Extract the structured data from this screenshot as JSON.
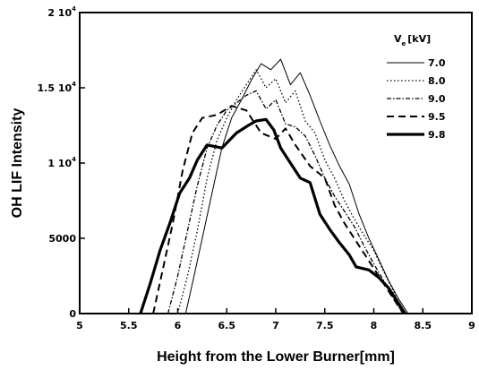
{
  "chart_data": {
    "type": "line",
    "xlabel": "Height from the Lower Burner[mm]",
    "ylabel": "OH LIF Intensity",
    "xlim": [
      5,
      9
    ],
    "ylim": [
      0,
      20000
    ],
    "x_ticks": [
      {
        "value": 5,
        "label": "5"
      },
      {
        "value": 5.5,
        "label": "5.5"
      },
      {
        "value": 6,
        "label": "6"
      },
      {
        "value": 6.5,
        "label": "6.5"
      },
      {
        "value": 7,
        "label": "7"
      },
      {
        "value": 7.5,
        "label": "7.5"
      },
      {
        "value": 8,
        "label": "8"
      },
      {
        "value": 8.5,
        "label": "8.5"
      },
      {
        "value": 9,
        "label": "9"
      }
    ],
    "y_ticks": [
      {
        "value": 0,
        "base": "0",
        "exp": ""
      },
      {
        "value": 5000,
        "base": "5000",
        "exp": ""
      },
      {
        "value": 10000,
        "base": "1 10",
        "exp": "4"
      },
      {
        "value": 15000,
        "base": "1.5 10",
        "exp": "4"
      },
      {
        "value": 20000,
        "base": "2 10",
        "exp": "4"
      }
    ],
    "legend": {
      "title_main": "V",
      "title_sub": "e",
      "title_unit": "[kV]",
      "placement": "top-right"
    },
    "grid": false,
    "series": [
      {
        "name": "7.0",
        "style": "thin-solid",
        "points": [
          [
            6.08,
            0
          ],
          [
            6.15,
            2000
          ],
          [
            6.25,
            5000
          ],
          [
            6.35,
            8000
          ],
          [
            6.45,
            11000
          ],
          [
            6.55,
            13000
          ],
          [
            6.65,
            14200
          ],
          [
            6.75,
            15500
          ],
          [
            6.85,
            16600
          ],
          [
            6.95,
            16200
          ],
          [
            7.05,
            16900
          ],
          [
            7.15,
            15200
          ],
          [
            7.25,
            16000
          ],
          [
            7.35,
            14500
          ],
          [
            7.45,
            12800
          ],
          [
            7.55,
            11200
          ],
          [
            7.65,
            9800
          ],
          [
            7.75,
            8600
          ],
          [
            7.85,
            6600
          ],
          [
            7.95,
            5000
          ],
          [
            8.05,
            3600
          ],
          [
            8.15,
            2200
          ],
          [
            8.25,
            1000
          ],
          [
            8.35,
            0
          ]
        ]
      },
      {
        "name": "8.0",
        "style": "dotted",
        "points": [
          [
            6.0,
            0
          ],
          [
            6.1,
            2500
          ],
          [
            6.2,
            5500
          ],
          [
            6.3,
            9000
          ],
          [
            6.4,
            11500
          ],
          [
            6.5,
            13000
          ],
          [
            6.6,
            14200
          ],
          [
            6.7,
            15200
          ],
          [
            6.8,
            16200
          ],
          [
            6.9,
            15000
          ],
          [
            7.0,
            15600
          ],
          [
            7.1,
            14000
          ],
          [
            7.2,
            14800
          ],
          [
            7.3,
            12800
          ],
          [
            7.4,
            12000
          ],
          [
            7.5,
            10200
          ],
          [
            7.6,
            9000
          ],
          [
            7.7,
            7500
          ],
          [
            7.8,
            6300
          ],
          [
            7.9,
            5200
          ],
          [
            8.0,
            4200
          ],
          [
            8.1,
            2800
          ],
          [
            8.2,
            1500
          ],
          [
            8.3,
            0
          ]
        ]
      },
      {
        "name": "9.0",
        "style": "dash-dot",
        "points": [
          [
            5.9,
            0
          ],
          [
            6.0,
            2500
          ],
          [
            6.1,
            5500
          ],
          [
            6.2,
            8500
          ],
          [
            6.3,
            11000
          ],
          [
            6.4,
            12500
          ],
          [
            6.5,
            13500
          ],
          [
            6.6,
            14000
          ],
          [
            6.7,
            14500
          ],
          [
            6.8,
            14800
          ],
          [
            6.9,
            13600
          ],
          [
            7.0,
            14200
          ],
          [
            7.1,
            12600
          ],
          [
            7.2,
            12400
          ],
          [
            7.3,
            11800
          ],
          [
            7.4,
            10500
          ],
          [
            7.5,
            9000
          ],
          [
            7.6,
            7800
          ],
          [
            7.7,
            6800
          ],
          [
            7.8,
            5800
          ],
          [
            7.9,
            4500
          ],
          [
            8.0,
            3300
          ],
          [
            8.1,
            2200
          ],
          [
            8.2,
            1000
          ],
          [
            8.3,
            0
          ]
        ]
      },
      {
        "name": "9.5",
        "style": "dashed",
        "points": [
          [
            5.75,
            0
          ],
          [
            5.85,
            3000
          ],
          [
            5.95,
            6000
          ],
          [
            6.05,
            9500
          ],
          [
            6.15,
            12000
          ],
          [
            6.25,
            13000
          ],
          [
            6.4,
            13200
          ],
          [
            6.55,
            13800
          ],
          [
            6.7,
            13500
          ],
          [
            6.85,
            12000
          ],
          [
            7.0,
            11600
          ],
          [
            7.1,
            12300
          ],
          [
            7.2,
            11200
          ],
          [
            7.35,
            9800
          ],
          [
            7.5,
            9000
          ],
          [
            7.6,
            7200
          ],
          [
            7.7,
            6000
          ],
          [
            7.8,
            5000
          ],
          [
            7.9,
            4000
          ],
          [
            8.0,
            3000
          ],
          [
            8.1,
            2000
          ],
          [
            8.2,
            1000
          ],
          [
            8.3,
            0
          ]
        ]
      },
      {
        "name": "9.8",
        "style": "thick-solid",
        "points": [
          [
            5.62,
            0
          ],
          [
            5.72,
            2000
          ],
          [
            5.82,
            4200
          ],
          [
            5.92,
            6000
          ],
          [
            6.02,
            8000
          ],
          [
            6.12,
            9000
          ],
          [
            6.2,
            10200
          ],
          [
            6.3,
            11200
          ],
          [
            6.45,
            11000
          ],
          [
            6.6,
            12000
          ],
          [
            6.72,
            12500
          ],
          [
            6.8,
            12800
          ],
          [
            6.9,
            12900
          ],
          [
            6.98,
            12200
          ],
          [
            7.05,
            11000
          ],
          [
            7.15,
            10000
          ],
          [
            7.25,
            9000
          ],
          [
            7.35,
            8700
          ],
          [
            7.45,
            6600
          ],
          [
            7.55,
            5600
          ],
          [
            7.65,
            4700
          ],
          [
            7.75,
            3900
          ],
          [
            7.82,
            3100
          ],
          [
            7.95,
            2900
          ],
          [
            8.05,
            2400
          ],
          [
            8.15,
            1700
          ],
          [
            8.25,
            700
          ],
          [
            8.32,
            0
          ]
        ]
      }
    ]
  }
}
